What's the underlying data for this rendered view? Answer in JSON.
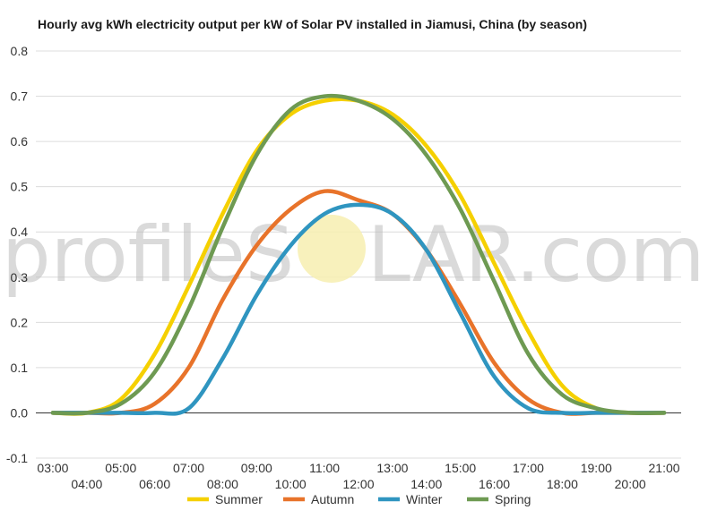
{
  "chart_data": {
    "type": "line",
    "title": "Hourly avg kWh electricity output per kW of Solar PV installed in Jiamusi, China (by season)",
    "xlabel": "",
    "ylabel": "",
    "x": [
      3,
      4,
      5,
      6,
      7,
      8,
      9,
      10,
      11,
      12,
      13,
      14,
      15,
      16,
      17,
      18,
      19,
      20,
      21
    ],
    "x_tick_labels": [
      "03:00",
      "04:00",
      "05:00",
      "06:00",
      "07:00",
      "08:00",
      "09:00",
      "10:00",
      "11:00",
      "12:00",
      "13:00",
      "14:00",
      "15:00",
      "16:00",
      "17:00",
      "18:00",
      "19:00",
      "20:00",
      "21:00"
    ],
    "ylim": [
      -0.1,
      0.8
    ],
    "y_ticks": [
      -0.1,
      0.0,
      0.1,
      0.2,
      0.3,
      0.4,
      0.5,
      0.6,
      0.7,
      0.8
    ],
    "y_tick_labels": [
      "-0.1",
      "0.0",
      "0.1",
      "0.2",
      "0.3",
      "0.4",
      "0.5",
      "0.6",
      "0.7",
      "0.8"
    ],
    "grid": true,
    "legend_position": "bottom",
    "series": [
      {
        "name": "Summer",
        "color": "#f5d000",
        "values": [
          0.0,
          0.0,
          0.03,
          0.13,
          0.28,
          0.44,
          0.58,
          0.66,
          0.69,
          0.69,
          0.66,
          0.59,
          0.48,
          0.33,
          0.18,
          0.06,
          0.01,
          0.0,
          0.0
        ]
      },
      {
        "name": "Autumn",
        "color": "#e8732a",
        "values": [
          0.0,
          0.0,
          0.0,
          0.02,
          0.1,
          0.25,
          0.37,
          0.45,
          0.49,
          0.47,
          0.44,
          0.36,
          0.24,
          0.11,
          0.03,
          0.0,
          0.0,
          0.0,
          0.0
        ]
      },
      {
        "name": "Winter",
        "color": "#2f95c0",
        "values": [
          0.0,
          0.0,
          0.0,
          0.0,
          0.01,
          0.12,
          0.26,
          0.37,
          0.44,
          0.46,
          0.44,
          0.36,
          0.22,
          0.08,
          0.01,
          0.0,
          0.0,
          0.0,
          0.0
        ]
      },
      {
        "name": "Spring",
        "color": "#6e9a52",
        "values": [
          0.0,
          0.0,
          0.02,
          0.09,
          0.23,
          0.41,
          0.57,
          0.67,
          0.7,
          0.69,
          0.65,
          0.57,
          0.45,
          0.29,
          0.13,
          0.04,
          0.01,
          0.0,
          0.0
        ]
      }
    ]
  },
  "watermark": {
    "text_left": "profileS",
    "text_right": "LAR.com",
    "sun_color": "#f7efb0"
  }
}
